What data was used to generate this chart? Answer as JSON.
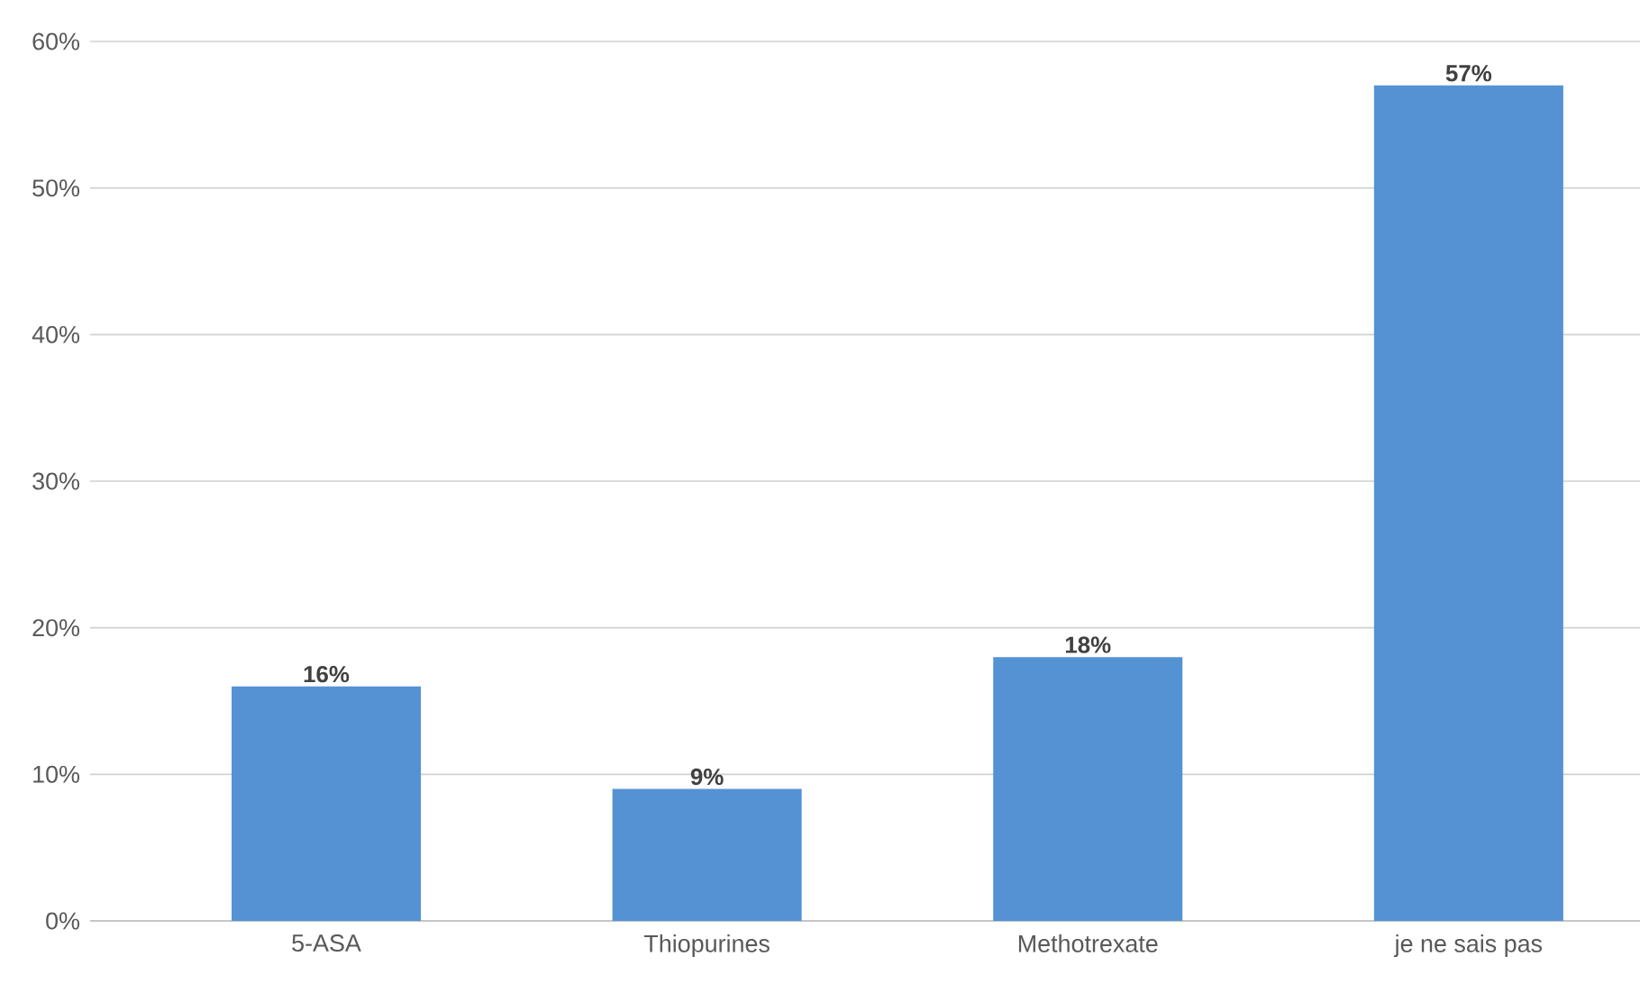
{
  "chart_data": {
    "type": "bar",
    "categories": [
      "5-ASA",
      "Thiopurines",
      "Methotrexate",
      "je ne sais pas"
    ],
    "values": [
      16,
      9,
      18,
      57
    ],
    "value_labels": [
      "16%",
      "9%",
      "18%",
      "57%"
    ],
    "color": "#5592d4",
    "ylim": [
      0,
      60
    ],
    "yticks": [
      {
        "value": 0,
        "label": "0%"
      },
      {
        "value": 10,
        "label": "10%"
      },
      {
        "value": 20,
        "label": "20%"
      },
      {
        "value": 30,
        "label": "30%"
      },
      {
        "value": 40,
        "label": "40%"
      },
      {
        "value": 50,
        "label": "50%"
      },
      {
        "value": 60,
        "label": "60%"
      }
    ],
    "grid": "y"
  }
}
